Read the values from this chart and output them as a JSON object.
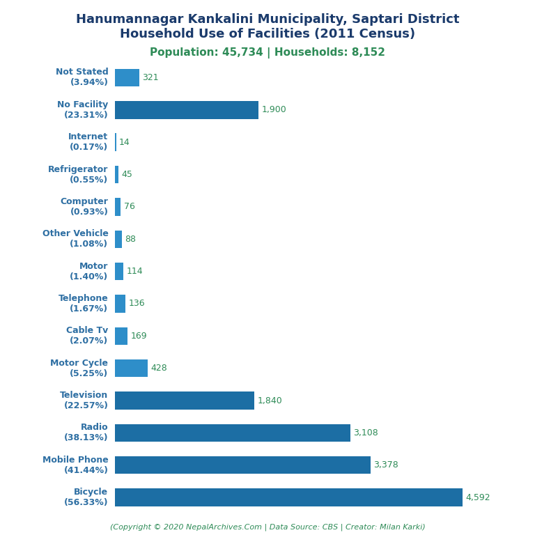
{
  "title_line1": "Hanumannagar Kankalini Municipality, Saptari District",
  "title_line2": "Household Use of Facilities (2011 Census)",
  "subtitle": "Population: 45,734 | Households: 8,152",
  "footer": "(Copyright © 2020 NepalArchives.Com | Data Source: CBS | Creator: Milan Karki)",
  "categories": [
    "Not Stated\n(3.94%)",
    "No Facility\n(23.31%)",
    "Internet\n(0.17%)",
    "Refrigerator\n(0.55%)",
    "Computer\n(0.93%)",
    "Other Vehicle\n(1.08%)",
    "Motor\n(1.40%)",
    "Telephone\n(1.67%)",
    "Cable Tv\n(2.07%)",
    "Motor Cycle\n(5.25%)",
    "Television\n(22.57%)",
    "Radio\n(38.13%)",
    "Mobile Phone\n(41.44%)",
    "Bicycle\n(56.33%)"
  ],
  "values": [
    321,
    1900,
    14,
    45,
    76,
    88,
    114,
    136,
    169,
    428,
    1840,
    3108,
    3378,
    4592
  ],
  "value_labels": [
    "321",
    "1,900",
    "14",
    "45",
    "76",
    "88",
    "114",
    "136",
    "169",
    "428",
    "1,840",
    "3,108",
    "3,378",
    "4,592"
  ],
  "title_color": "#1a3a6b",
  "subtitle_color": "#2e8b57",
  "label_color": "#2e6fa3",
  "value_color": "#2e8b57",
  "footer_color": "#2e8b57",
  "background_color": "#ffffff",
  "xlim": [
    0,
    5200
  ],
  "figsize": [
    7.68,
    7.68
  ],
  "dpi": 100,
  "title_fontsize": 13,
  "subtitle_fontsize": 11,
  "ylabel_fontsize": 9,
  "value_fontsize": 9
}
